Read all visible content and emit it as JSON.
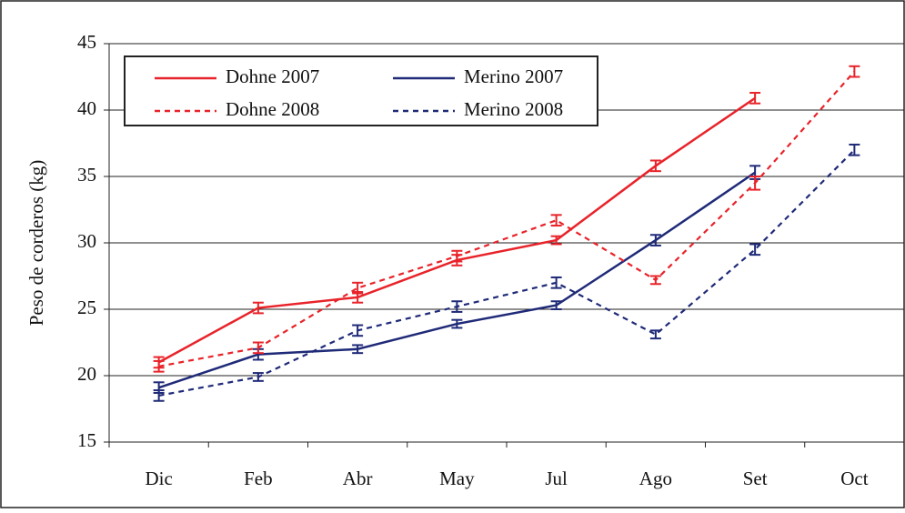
{
  "chart_data": {
    "type": "line",
    "y_label": "Peso de corderos (kg)",
    "categories": [
      "Dic",
      "Feb",
      "Abr",
      "May",
      "Jul",
      "Ago",
      "Set",
      "Oct"
    ],
    "series": [
      {
        "name": "Dohne 2007",
        "color": "#e8232a",
        "line_style": "solid",
        "values": [
          21.0,
          25.1,
          25.9,
          28.7,
          30.2,
          35.8,
          40.9,
          null
        ],
        "errors": [
          0.4,
          0.4,
          0.4,
          0.4,
          0.3,
          0.4,
          0.4,
          null
        ]
      },
      {
        "name": "Merino 2007",
        "color": "#1f2a78",
        "line_style": "solid",
        "values": [
          19.1,
          21.6,
          22.0,
          23.9,
          25.3,
          30.2,
          35.3,
          null
        ],
        "errors": [
          0.4,
          0.4,
          0.3,
          0.3,
          0.3,
          0.4,
          0.5,
          null
        ]
      },
      {
        "name": "Dohne 2008",
        "color": "#e8232a",
        "line_style": "dashed",
        "values": [
          20.7,
          22.1,
          26.6,
          29.0,
          31.7,
          27.2,
          34.5,
          42.9
        ],
        "errors": [
          0.4,
          0.4,
          0.4,
          0.4,
          0.4,
          0.3,
          0.5,
          0.4
        ]
      },
      {
        "name": "Merino 2008",
        "color": "#1f2a78",
        "line_style": "dashed",
        "values": [
          18.5,
          19.9,
          23.4,
          25.2,
          27.0,
          23.1,
          29.5,
          37.0
        ],
        "errors": [
          0.4,
          0.3,
          0.4,
          0.4,
          0.4,
          0.3,
          0.4,
          0.4
        ]
      }
    ],
    "ylim": [
      15,
      45
    ],
    "yticks": [
      15,
      20,
      25,
      30,
      35,
      40,
      45
    ],
    "grid": true,
    "legend": "top-left"
  }
}
